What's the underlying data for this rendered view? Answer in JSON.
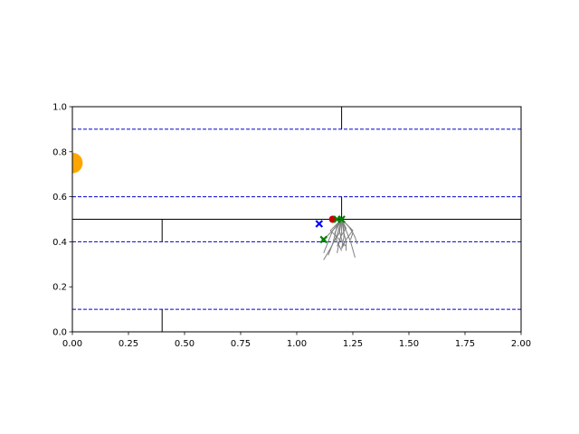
{
  "chart_data": {
    "type": "scatter",
    "title": "",
    "xlabel": "",
    "ylabel": "",
    "xlim": [
      0,
      2
    ],
    "ylim": [
      0,
      1
    ],
    "grid": false,
    "x_ticks": [
      0.0,
      0.25,
      0.5,
      0.75,
      1.0,
      1.25,
      1.5,
      1.75,
      2.0
    ],
    "x_tick_labels": [
      "0.00",
      "0.25",
      "0.50",
      "0.75",
      "1.00",
      "1.25",
      "1.50",
      "1.75",
      "2.00"
    ],
    "y_ticks": [
      0.0,
      0.2,
      0.4,
      0.6,
      0.8,
      1.0
    ],
    "y_tick_labels": [
      "0.0",
      "0.2",
      "0.4",
      "0.6",
      "0.8",
      "1.0"
    ],
    "colors": {
      "walls": "#000000",
      "lanes": "#0000cc",
      "goal": "#ffa500",
      "trajectories": "#808080",
      "agent": "#cc0000",
      "blue_marker": "#0000ff",
      "green_markers": "#008000"
    },
    "walls": [
      {
        "x": [
          0.0,
          2.0
        ],
        "y": [
          0.5,
          0.5
        ]
      },
      {
        "x": [
          1.2,
          1.2
        ],
        "y": [
          0.9,
          1.0
        ]
      },
      {
        "x": [
          1.2,
          1.2
        ],
        "y": [
          0.5,
          0.6
        ]
      },
      {
        "x": [
          0.4,
          0.4
        ],
        "y": [
          0.4,
          0.5
        ]
      },
      {
        "x": [
          0.4,
          0.4
        ],
        "y": [
          0.0,
          0.1
        ]
      }
    ],
    "dashed_lines_y": [
      0.9,
      0.6,
      0.4,
      0.1
    ],
    "goal": {
      "x": 0.0,
      "y": 0.75,
      "radius": 0.04
    },
    "agent_point": {
      "x": 1.16,
      "y": 0.5
    },
    "blue_x_point": {
      "x": 1.1,
      "y": 0.48
    },
    "green_x_points": [
      {
        "x": 1.12,
        "y": 0.41
      },
      {
        "x": 1.18,
        "y": 0.5
      },
      {
        "x": 1.2,
        "y": 0.5
      }
    ],
    "trajectories": [
      {
        "x": [
          1.2,
          1.18,
          1.15,
          1.12
        ],
        "y": [
          0.5,
          0.43,
          0.37,
          0.32
        ]
      },
      {
        "x": [
          1.2,
          1.19,
          1.16,
          1.14
        ],
        "y": [
          0.5,
          0.44,
          0.39,
          0.34
        ]
      },
      {
        "x": [
          1.2,
          1.2,
          1.19,
          1.18
        ],
        "y": [
          0.5,
          0.44,
          0.4,
          0.35
        ]
      },
      {
        "x": [
          1.2,
          1.21,
          1.22,
          1.22
        ],
        "y": [
          0.5,
          0.44,
          0.4,
          0.36
        ]
      },
      {
        "x": [
          1.2,
          1.22,
          1.24,
          1.26
        ],
        "y": [
          0.5,
          0.45,
          0.4,
          0.33
        ]
      },
      {
        "x": [
          1.2,
          1.24,
          1.26,
          1.27
        ],
        "y": [
          0.5,
          0.46,
          0.42,
          0.39
        ]
      },
      {
        "x": [
          1.2,
          1.17,
          1.13,
          1.11
        ],
        "y": [
          0.5,
          0.46,
          0.42,
          0.41
        ]
      },
      {
        "x": [
          1.2,
          1.16,
          1.14,
          1.12
        ],
        "y": [
          0.5,
          0.45,
          0.4,
          0.35
        ]
      },
      {
        "x": [
          1.2,
          1.21,
          1.21,
          1.2
        ],
        "y": [
          0.5,
          0.46,
          0.42,
          0.37
        ]
      },
      {
        "x": [
          1.2,
          1.23,
          1.25,
          1.24
        ],
        "y": [
          0.5,
          0.47,
          0.44,
          0.41
        ]
      },
      {
        "x": [
          1.2,
          1.18,
          1.17,
          1.16
        ],
        "y": [
          0.5,
          0.47,
          0.43,
          0.39
        ]
      },
      {
        "x": [
          1.2,
          1.19,
          1.2,
          1.21
        ],
        "y": [
          0.5,
          0.45,
          0.41,
          0.38
        ]
      },
      {
        "x": [
          1.2,
          1.22,
          1.2,
          1.18
        ],
        "y": [
          0.5,
          0.46,
          0.43,
          0.38
        ]
      },
      {
        "x": [
          1.2,
          1.17,
          1.18,
          1.2
        ],
        "y": [
          0.5,
          0.44,
          0.4,
          0.36
        ]
      },
      {
        "x": [
          1.2,
          1.25,
          1.22,
          1.2
        ],
        "y": [
          0.5,
          0.45,
          0.41,
          0.37
        ]
      },
      {
        "x": [
          1.2,
          1.15,
          1.18,
          1.22
        ],
        "y": [
          0.5,
          0.45,
          0.42,
          0.38
        ]
      }
    ]
  }
}
